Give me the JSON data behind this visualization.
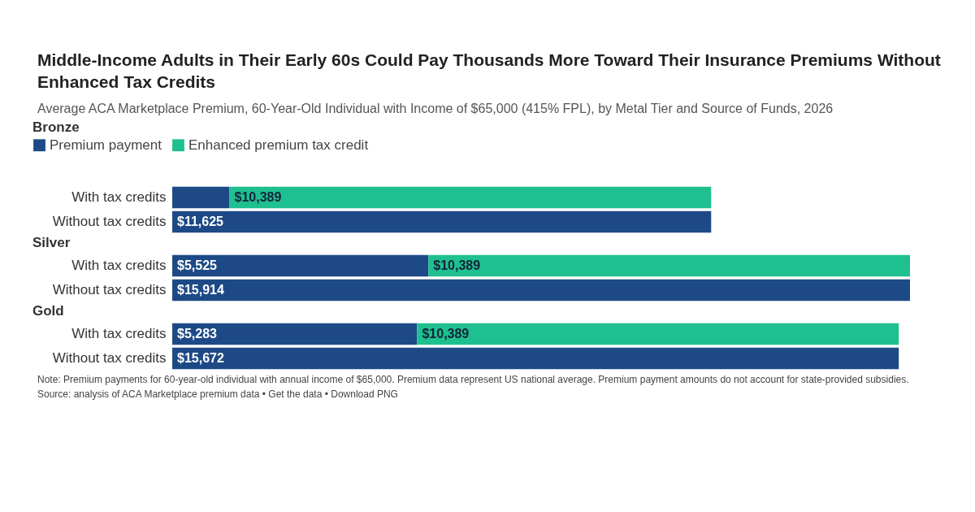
{
  "chart_data": [
    {
      "type": "other",
      "title": "Middle-Income Adults in Their Early 60s Could Pay Thousands More Toward Their Insurance Premiums Without Enhanced Tax Credits",
      "subtitle": "Average ACA Marketplace Premium, 60-Year-Old Individual with Income of $65,000 (415% FPL), by Metal Tier and Source of Funds, 2026"
    },
    {
      "type": "bar",
      "orientation": "horizontal",
      "stacked": true,
      "title": "Bronze",
      "legend": "top left",
      "categories": [
        "With tax credits",
        "Without tax credits"
      ],
      "series": [
        {
          "name": "Premium payment",
          "color": "#1d4a87",
          "values": [
            1236,
            11625
          ],
          "value_labels": [
            null,
            "$11,625"
          ]
        },
        {
          "name": "Enhanced premium tax credit",
          "color": "#1fc08f",
          "values": [
            10389,
            null
          ],
          "value_labels": [
            "$10,389",
            null
          ]
        }
      ]
    },
    {
      "type": "bar",
      "orientation": "horizontal",
      "stacked": true,
      "title": "Silver",
      "categories": [
        "With tax credits",
        "Without tax credits"
      ],
      "series": [
        {
          "color": "#1d4a87",
          "values": [
            5525,
            15914
          ],
          "value_labels": [
            "$5,525",
            "$15,914"
          ]
        },
        {
          "color": "#1fc08f",
          "values": [
            10389,
            null
          ],
          "value_labels": [
            "$10,389",
            null
          ]
        }
      ]
    },
    {
      "type": "bar",
      "orientation": "horizontal",
      "stacked": true,
      "title": "Gold",
      "categories": [
        "With tax credits",
        "Without tax credits"
      ],
      "series": [
        {
          "color": "#1d4a87",
          "values": [
            5283,
            15672
          ],
          "value_labels": [
            "$5,283",
            "$15,672"
          ]
        },
        {
          "color": "#1fc08f",
          "values": [
            10389,
            null
          ],
          "value_labels": [
            "$10,389",
            null
          ]
        }
      ],
      "annotations": [
        "Note: Premium payments for 60-year-old individual with annual income of $65,000. Premium data represent US national average. Premium payment amounts do not account for state-provided subsidies.",
        "Source: analysis of ACA Marketplace premium data • Get the data • Download PNG"
      ]
    }
  ]
}
